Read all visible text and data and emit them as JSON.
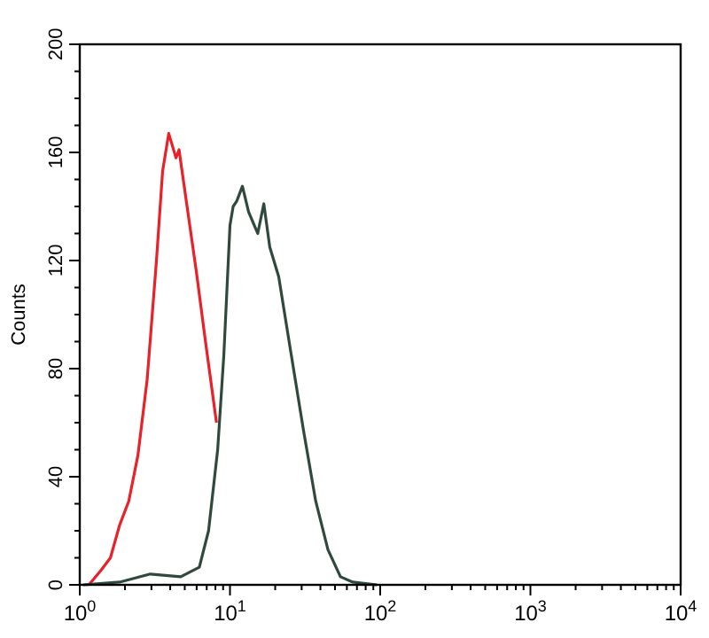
{
  "chart_data": {
    "type": "line",
    "ylabel": "Counts",
    "log": "x",
    "xlim": [
      1,
      10000
    ],
    "ylim": [
      0,
      200
    ],
    "xticks": [
      {
        "value": 1,
        "label": "10$^{0}$"
      },
      {
        "value": 10,
        "label": "10$^{1}$"
      },
      {
        "value": 100,
        "label": "10$^{2}$"
      },
      {
        "value": 1000,
        "label": "10$^{3}$"
      },
      {
        "value": 10000,
        "label": "10$^{4}$"
      }
    ],
    "yticks": [
      0,
      40,
      80,
      120,
      160,
      200
    ],
    "grid": false,
    "marker": "none",
    "line_style": "solid",
    "series": [
      {
        "color": "#e8212a",
        "x": [
          1.15,
          1.39,
          1.6,
          1.84,
          2.12,
          2.44,
          2.81,
          3.24,
          3.56,
          3.91,
          4.37,
          4.58,
          5.18,
          5.97,
          6.87,
          8.13
        ],
        "values": [
          0,
          5.5,
          10,
          22,
          31,
          48,
          76,
          120,
          153,
          167,
          158,
          161,
          140,
          116,
          90,
          60
        ]
      },
      {
        "color": "#2f4a3c",
        "x": [
          1.05,
          1.84,
          2.95,
          4.7,
          6.25,
          7.2,
          8.28,
          9.1,
          10,
          10.5,
          11.1,
          12.1,
          13.3,
          15.3,
          16.8,
          18.4,
          21.1,
          25.6,
          30.9,
          37.2,
          44.9,
          54.4,
          65.7,
          95
        ],
        "values": [
          0,
          1,
          4,
          3,
          6.5,
          20,
          50,
          85,
          133,
          140,
          142,
          147.5,
          138,
          130,
          141,
          125,
          114,
          85,
          57,
          31,
          13,
          3,
          1,
          0
        ]
      }
    ]
  }
}
